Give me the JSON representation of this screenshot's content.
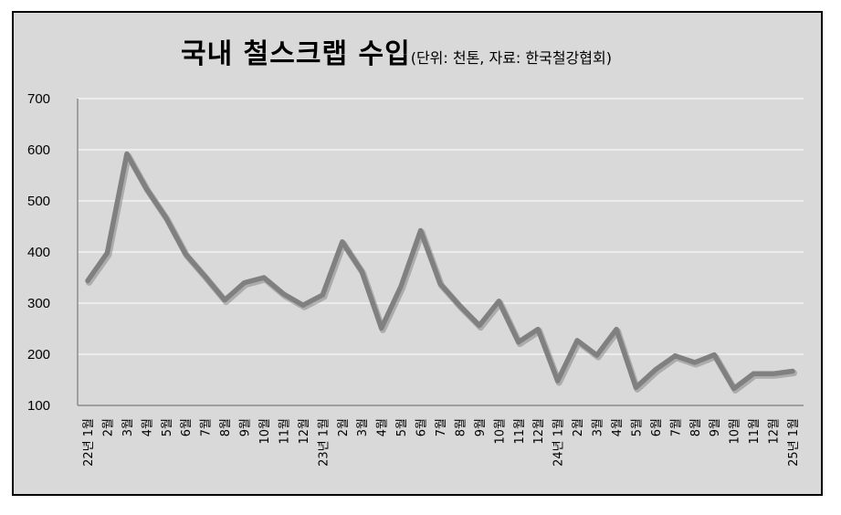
{
  "chart_data": {
    "type": "line",
    "title": "국내 철스크랩 수입",
    "subtitle": "(단위: 천톤, 자료: 한국철강협회)",
    "xlabel": "",
    "ylabel": "",
    "ylim": [
      100,
      700
    ],
    "yticks": [
      100,
      200,
      300,
      400,
      500,
      600,
      700
    ],
    "grid": true,
    "legend": "none",
    "line_color": "#808080",
    "categories": [
      "22년 1월",
      "2월",
      "3월",
      "4월",
      "5월",
      "6월",
      "7월",
      "8월",
      "9월",
      "10월",
      "11월",
      "12월",
      "23년 1월",
      "2월",
      "3월",
      "4월",
      "5월",
      "6월",
      "7월",
      "8월",
      "9월",
      "10월",
      "11월",
      "12월",
      "24년 1월",
      "2월",
      "3월",
      "4월",
      "5월",
      "6월",
      "7월",
      "8월",
      "9월",
      "10월",
      "11월",
      "12월",
      "25년 1월"
    ],
    "series": [
      {
        "values": [
          344,
          398,
          592,
          524,
          467,
          396,
          352,
          306,
          340,
          350,
          318,
          296,
          316,
          420,
          362,
          251,
          333,
          442,
          338,
          295,
          256,
          304,
          224,
          249,
          148,
          227,
          198,
          249,
          135,
          170,
          197,
          184,
          199,
          133,
          162,
          162,
          167
        ]
      }
    ]
  }
}
